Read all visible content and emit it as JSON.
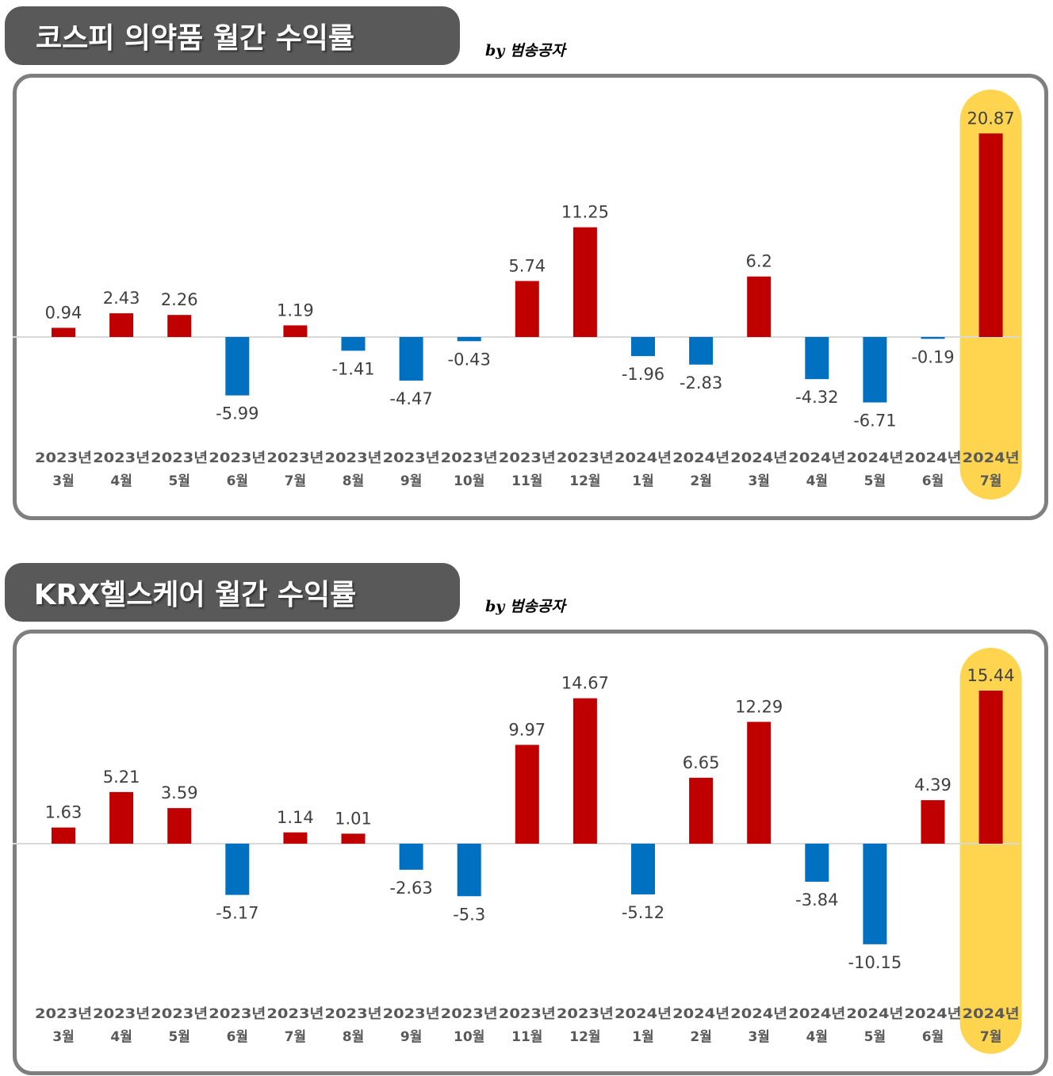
{
  "colors": {
    "positive": "#c00000",
    "negative": "#0070c0",
    "highlight": "#ffd54f",
    "zero_line": "#d9d9d9",
    "title_bg": "#595959"
  },
  "charts": [
    {
      "title": "코스피 의약품 월간 수익률",
      "byline": "by 범송공자",
      "chart_data": {
        "type": "bar",
        "categories": [
          [
            "2023년",
            "3월"
          ],
          [
            "2023년",
            "4월"
          ],
          [
            "2023년",
            "5월"
          ],
          [
            "2023년",
            "6월"
          ],
          [
            "2023년",
            "7월"
          ],
          [
            "2023년",
            "8월"
          ],
          [
            "2023년",
            "9월"
          ],
          [
            "2023년",
            "10월"
          ],
          [
            "2023년",
            "11월"
          ],
          [
            "2023년",
            "12월"
          ],
          [
            "2024년",
            "1월"
          ],
          [
            "2024년",
            "2월"
          ],
          [
            "2024년",
            "3월"
          ],
          [
            "2024년",
            "4월"
          ],
          [
            "2024년",
            "5월"
          ],
          [
            "2024년",
            "6월"
          ],
          [
            "2024년",
            "7월"
          ]
        ],
        "values": [
          0.94,
          2.43,
          2.26,
          -5.99,
          1.19,
          -1.41,
          -4.47,
          -0.43,
          5.74,
          11.25,
          -1.96,
          -2.83,
          6.2,
          -4.32,
          -6.71,
          -0.19,
          20.87
        ],
        "labels": [
          "0.94",
          "2.43",
          "2.26",
          "-5.99",
          "1.19",
          "-1.41",
          "-4.47",
          "-0.43",
          "5.74",
          "11.25",
          "-1.96",
          "-2.83",
          "6.2",
          "-4.32",
          "-6.71",
          "-0.19",
          "20.87"
        ],
        "highlight_index": 16,
        "grid": false
      }
    },
    {
      "title": "KRX헬스케어 월간 수익률",
      "byline": "by 범송공자",
      "chart_data": {
        "type": "bar",
        "categories": [
          [
            "2023년",
            "3월"
          ],
          [
            "2023년",
            "4월"
          ],
          [
            "2023년",
            "5월"
          ],
          [
            "2023년",
            "6월"
          ],
          [
            "2023년",
            "7월"
          ],
          [
            "2023년",
            "8월"
          ],
          [
            "2023년",
            "9월"
          ],
          [
            "2023년",
            "10월"
          ],
          [
            "2023년",
            "11월"
          ],
          [
            "2023년",
            "12월"
          ],
          [
            "2024년",
            "1월"
          ],
          [
            "2024년",
            "2월"
          ],
          [
            "2024년",
            "3월"
          ],
          [
            "2024년",
            "4월"
          ],
          [
            "2024년",
            "5월"
          ],
          [
            "2024년",
            "6월"
          ],
          [
            "2024년",
            "7월"
          ]
        ],
        "values": [
          1.63,
          5.21,
          3.59,
          -5.17,
          1.14,
          1.01,
          -2.63,
          -5.3,
          9.97,
          14.67,
          -5.12,
          6.65,
          12.29,
          -3.84,
          -10.15,
          4.39,
          15.44
        ],
        "labels": [
          "1.63",
          "5.21",
          "3.59",
          "-5.17",
          "1.14",
          "1.01",
          "-2.63",
          "-5.3",
          "9.97",
          "14.67",
          "-5.12",
          "6.65",
          "12.29",
          "-3.84",
          "-10.15",
          "4.39",
          "15.44"
        ],
        "highlight_index": 16,
        "grid": false
      }
    }
  ]
}
